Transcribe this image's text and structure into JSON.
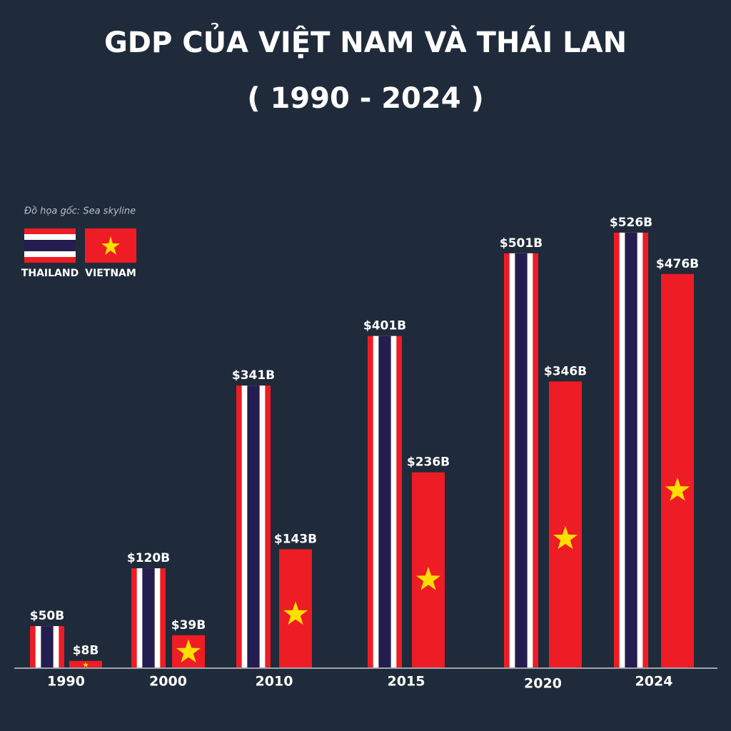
{
  "chart_data": {
    "type": "bar",
    "title": "GDP CỦA VIỆT NAM VÀ THÁI LAN",
    "subtitle": "( 1990 - 2024 )",
    "source": "Đồ họa gốc: Sea skyline",
    "categories": [
      "1990",
      "2000",
      "2010",
      "2015",
      "2020",
      "2024"
    ],
    "series": [
      {
        "name": "THAILAND",
        "color": "#241d4f",
        "values": [
          50,
          120,
          341,
          401,
          501,
          526
        ],
        "value_labels": [
          "$50B",
          "$120B",
          "$341B",
          "$401B",
          "$501B",
          "$526B"
        ]
      },
      {
        "name": "VIETNAM",
        "color": "#ee1c25",
        "values": [
          8,
          39,
          143,
          236,
          346,
          476
        ],
        "value_labels": [
          "$8B",
          "$39B",
          "$143B",
          "$236B",
          "$346B",
          "$476B"
        ]
      }
    ]
  }
}
